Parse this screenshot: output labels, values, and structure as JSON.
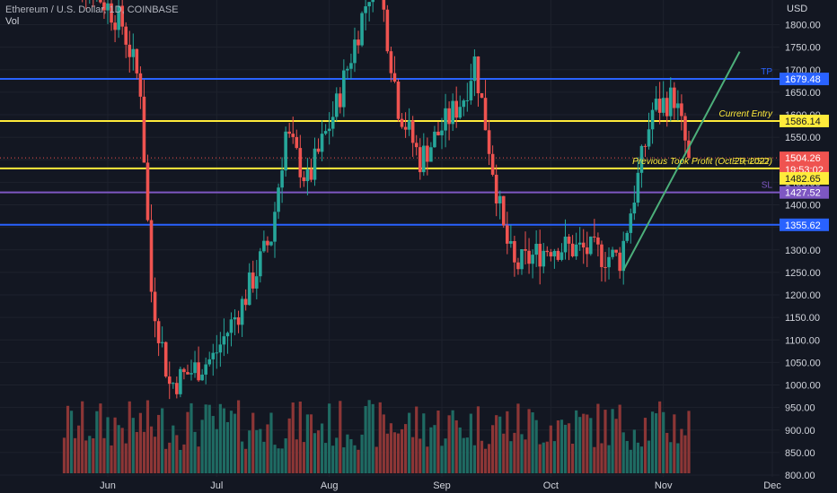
{
  "header": {
    "symbol_line": "Ethereum / U.S. Dollar, 1D, COINBASE",
    "volume_label": "Vol"
  },
  "axis": {
    "currency": "USD",
    "y_ticks": [
      800,
      850,
      900,
      950,
      1000,
      1050,
      1100,
      1150,
      1200,
      1250,
      1300,
      1350,
      1400,
      1450,
      1500,
      1550,
      1600,
      1650,
      1700,
      1750,
      1800
    ],
    "x_ticks": [
      "Jun",
      "Jul",
      "Aug",
      "Sep",
      "Oct",
      "Nov",
      "Dec"
    ]
  },
  "colors": {
    "background": "#131722",
    "grid": "#1e222d",
    "up": "#26a69a",
    "down": "#ef5350",
    "up_volume": "#1f6b63",
    "down_volume": "#8c3636",
    "tp_line": "#2962ff",
    "entry_line": "#ffeb3b",
    "sl_line": "#7e57c2",
    "trend_line": "#4caf7a"
  },
  "levels": [
    {
      "name": "TP",
      "value": 1679.48,
      "label": "1679.48",
      "text": "TP",
      "color": "#2962ff",
      "tag_text_color": "#ffffff"
    },
    {
      "name": "Current Entry",
      "value": 1586.14,
      "label": "1586.14",
      "text": "Current Entry",
      "color": "#ffeb3b",
      "tag_text_color": "#131722"
    },
    {
      "name": "Previous Took Profit",
      "value": 1480.85,
      "label": "1480.85",
      "text": "Previous Took Profit (Oct 29, 2022)",
      "color": "#ffeb3b",
      "tag_text_color": "#131722"
    },
    {
      "name": "SL",
      "value": 1427.52,
      "label": "1427.52",
      "text": "SL",
      "color": "#7e57c2",
      "tag_text_color": "#ffffff"
    },
    {
      "name": "Support",
      "value": 1355.62,
      "label": "1355.62",
      "text": "",
      "color": "#2962ff",
      "tag_text_color": "#ffffff"
    }
  ],
  "price_tags": [
    {
      "value": 1504.26,
      "label": "1504.26",
      "bg": "#ef5350",
      "fg": "#ffffff"
    },
    {
      "value": 1482.65,
      "label": "1482.65",
      "bg": "#ffeb3b",
      "fg": "#131722"
    }
  ],
  "countdown": "19:53:02",
  "overlap_text": "ETHUSD",
  "chart_data": {
    "type": "candlestick",
    "title": "Ethereum / U.S. Dollar, 1D, COINBASE",
    "ylabel": "USD",
    "ylim": [
      800,
      1850
    ],
    "x_range": [
      "2022-05-19",
      "2022-12-05"
    ],
    "month_ticks": [
      {
        "label": "Jun",
        "date": "2022-06-01"
      },
      {
        "label": "Jul",
        "date": "2022-07-01"
      },
      {
        "label": "Aug",
        "date": "2022-08-01"
      },
      {
        "label": "Sep",
        "date": "2022-09-01"
      },
      {
        "label": "Oct",
        "date": "2022-10-01"
      },
      {
        "label": "Nov",
        "date": "2022-11-01"
      },
      {
        "label": "Dec",
        "date": "2022-12-01"
      }
    ],
    "last_close": 1504.26,
    "key_closes": [
      {
        "date": "2022-05-20",
        "close": 1960
      },
      {
        "date": "2022-06-05",
        "close": 1800
      },
      {
        "date": "2022-06-10",
        "close": 1660
      },
      {
        "date": "2022-06-13",
        "close": 1210
      },
      {
        "date": "2022-06-18",
        "close": 1000
      },
      {
        "date": "2022-06-30",
        "close": 1060
      },
      {
        "date": "2022-07-08",
        "close": 1180
      },
      {
        "date": "2022-07-16",
        "close": 1330
      },
      {
        "date": "2022-07-20",
        "close": 1560
      },
      {
        "date": "2022-07-26",
        "close": 1450
      },
      {
        "date": "2022-08-03",
        "close": 1620
      },
      {
        "date": "2022-08-14",
        "close": 1930
      },
      {
        "date": "2022-08-20",
        "close": 1620
      },
      {
        "date": "2022-08-26",
        "close": 1500
      },
      {
        "date": "2022-09-07",
        "close": 1640
      },
      {
        "date": "2022-09-10",
        "close": 1720
      },
      {
        "date": "2022-09-13",
        "close": 1580
      },
      {
        "date": "2022-09-18",
        "close": 1340
      },
      {
        "date": "2022-09-21",
        "close": 1260
      },
      {
        "date": "2022-10-01",
        "close": 1310
      },
      {
        "date": "2022-10-10",
        "close": 1300
      },
      {
        "date": "2022-10-20",
        "close": 1280
      },
      {
        "date": "2022-10-25",
        "close": 1460
      },
      {
        "date": "2022-10-29",
        "close": 1610
      },
      {
        "date": "2022-11-04",
        "close": 1640
      },
      {
        "date": "2022-11-08",
        "close": 1504.26
      }
    ],
    "trend_line": {
      "start": [
        "2022-10-21",
        1255
      ],
      "end": [
        "2022-11-22",
        1740
      ]
    }
  }
}
